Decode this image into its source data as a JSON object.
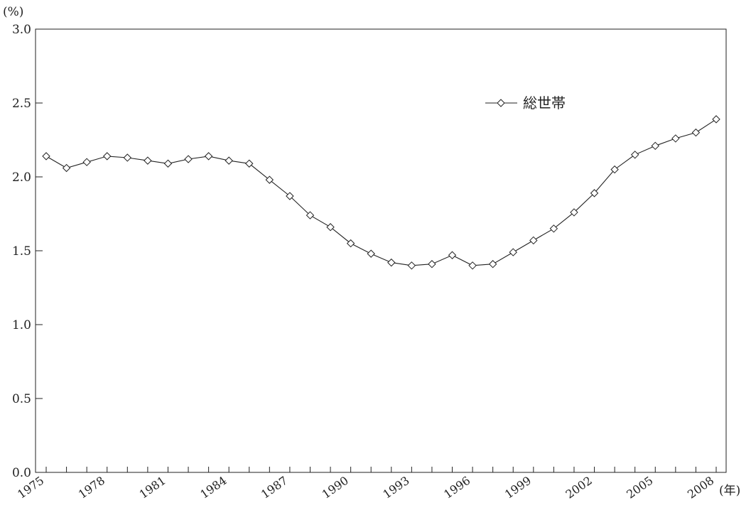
{
  "chart_data": {
    "type": "line",
    "y_unit_label": "(%)",
    "x_unit_label": "(年)",
    "ylim": [
      0.0,
      3.0
    ],
    "yticks": [
      "0.0",
      "0.5",
      "1.0",
      "1.5",
      "2.0",
      "2.5",
      "3.0"
    ],
    "xtick_labels": [
      "1975",
      "1978",
      "1981",
      "1984",
      "1987",
      "1990",
      "1993",
      "1996",
      "1999",
      "2002",
      "2005",
      "2008"
    ],
    "x": [
      1975,
      1976,
      1977,
      1978,
      1979,
      1980,
      1981,
      1982,
      1983,
      1984,
      1985,
      1986,
      1987,
      1988,
      1989,
      1990,
      1991,
      1992,
      1993,
      1994,
      1995,
      1996,
      1997,
      1998,
      1999,
      2000,
      2001,
      2002,
      2003,
      2004,
      2005,
      2006,
      2007,
      2008
    ],
    "series": [
      {
        "name": "総世帯",
        "marker": "diamond-open",
        "values": [
          2.14,
          2.06,
          2.1,
          2.14,
          2.13,
          2.11,
          2.09,
          2.12,
          2.14,
          2.11,
          2.09,
          1.98,
          1.87,
          1.74,
          1.66,
          1.55,
          1.48,
          1.42,
          1.4,
          1.41,
          1.47,
          1.4,
          1.41,
          1.49,
          1.57,
          1.65,
          1.76,
          1.89,
          2.05,
          2.15,
          2.21,
          2.26,
          2.3,
          2.39
        ]
      }
    ],
    "legend_position": "top-right",
    "grid": false
  }
}
